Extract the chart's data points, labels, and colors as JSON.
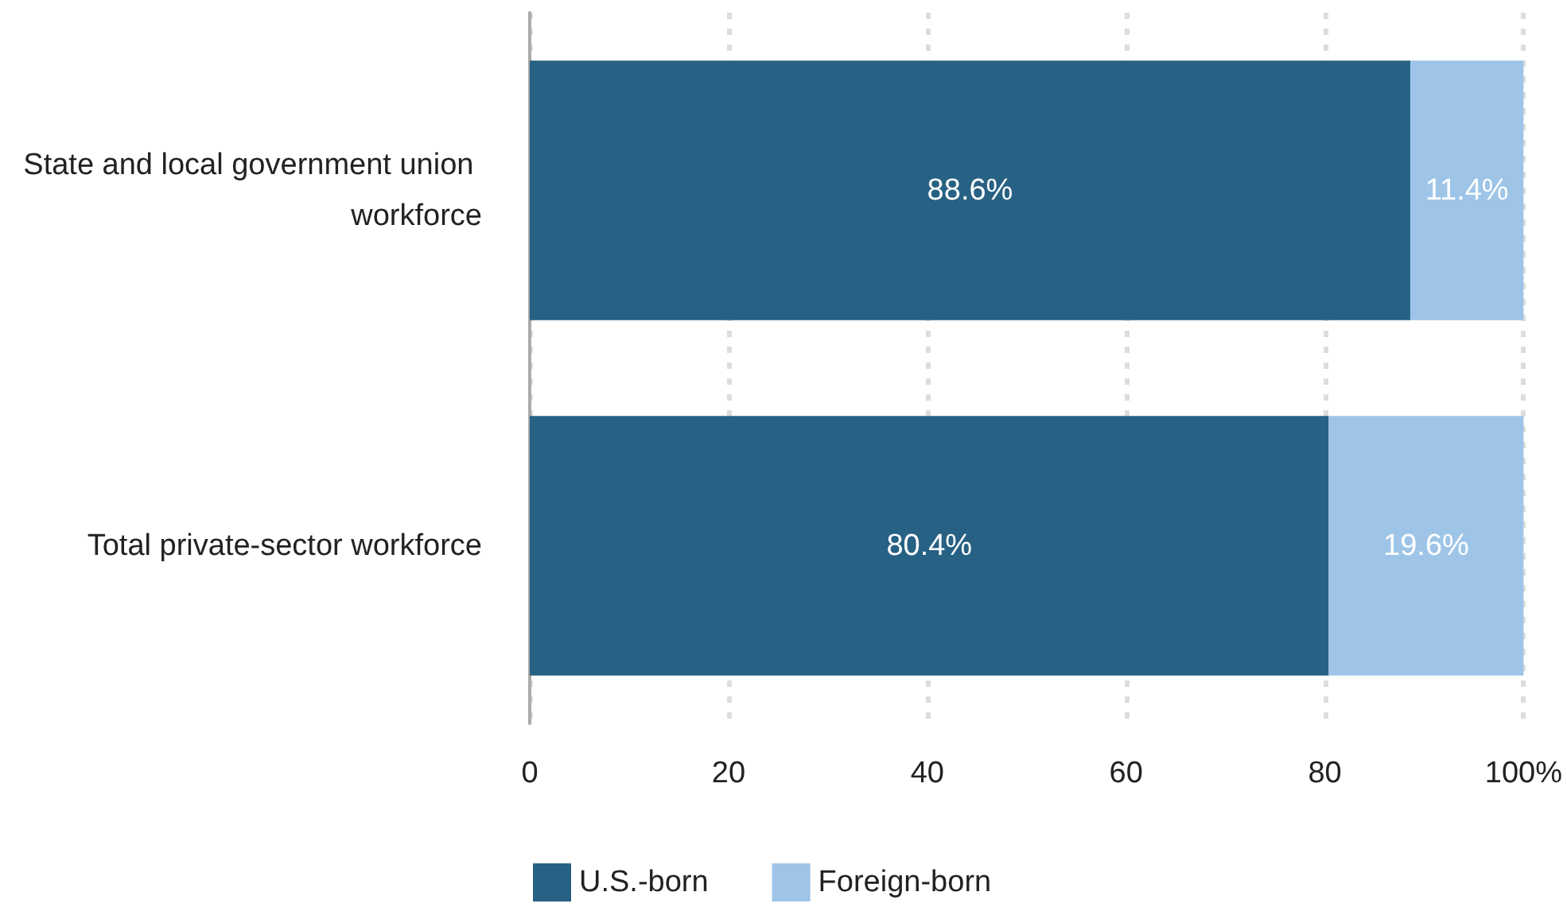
{
  "chart_data": {
    "type": "bar",
    "orientation": "horizontal",
    "stacked": true,
    "categories": [
      "State and local government union workforce",
      "Total private-sector workforce"
    ],
    "series": [
      {
        "name": "U.S.-born",
        "color": "#276184",
        "values": [
          88.6,
          80.4
        ],
        "value_labels": [
          "88.6%",
          "80.4%"
        ]
      },
      {
        "name": "Foreign-born",
        "color": "#9ec5e8",
        "values": [
          11.4,
          19.6
        ],
        "value_labels": [
          "11.4%",
          "19.6%"
        ]
      }
    ],
    "xlim": [
      0,
      100
    ],
    "xticks": [
      0,
      20,
      40,
      60,
      80,
      {
        "value": 100,
        "label": "100%"
      }
    ],
    "grid": "x",
    "legend": "bottom"
  }
}
